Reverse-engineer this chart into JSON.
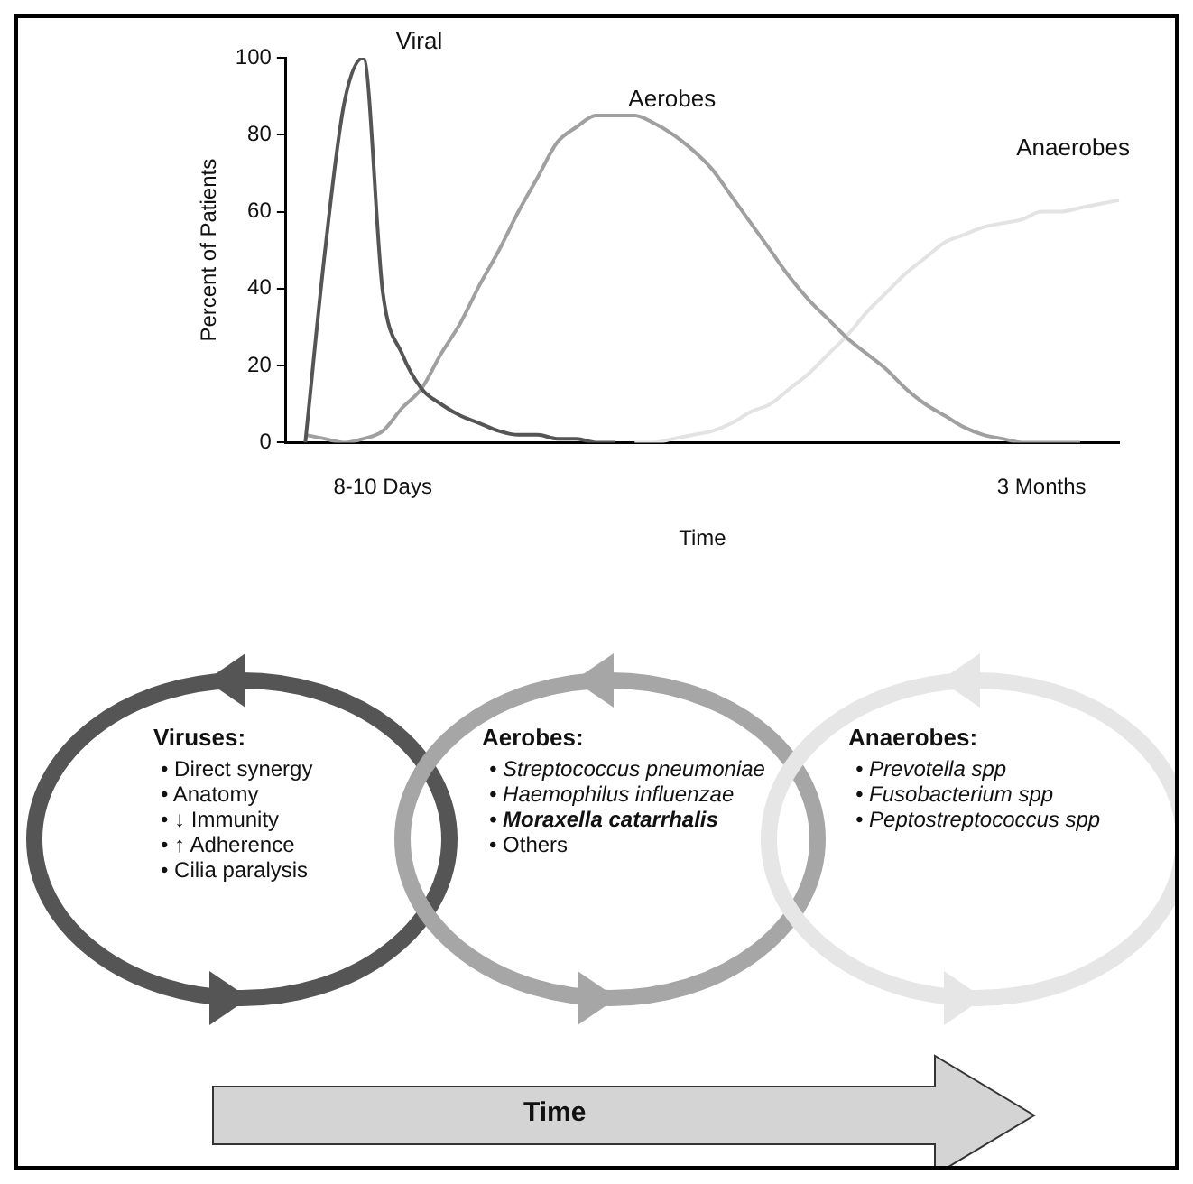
{
  "chart_data": {
    "type": "line",
    "xlabel": "Time",
    "ylabel": "Percent of Patients",
    "categories": [
      null,
      null,
      null,
      null,
      null,
      "8-10 Days",
      null,
      null,
      null,
      null,
      null,
      null,
      null,
      null,
      null,
      null,
      null,
      null,
      null,
      null,
      null,
      null,
      null,
      null,
      null,
      null,
      null,
      null,
      null,
      null,
      null,
      null,
      null,
      null,
      null,
      null,
      null,
      null,
      null,
      "3 Months",
      null,
      null,
      null,
      null
    ],
    "series": [
      {
        "name": "Viral",
        "color": "#555555",
        "values": [
          null,
          0,
          49,
          88,
          100,
          39,
          23,
          14,
          10,
          7,
          5,
          3,
          2,
          2,
          1,
          1,
          0,
          0,
          null,
          null,
          null,
          null,
          null,
          null,
          null,
          null,
          null,
          null,
          null,
          null,
          null,
          null,
          null,
          null,
          null,
          null,
          null,
          null,
          null,
          null,
          null,
          null,
          null,
          null
        ]
      },
      {
        "name": "Aerobes",
        "color": "#a0a0a0",
        "values": [
          null,
          2,
          1,
          0,
          1,
          3,
          9,
          14,
          23,
          31,
          41,
          50,
          60,
          69,
          78,
          82,
          85,
          85,
          85,
          83,
          80,
          76,
          71,
          64,
          57,
          50,
          43,
          37,
          32,
          27,
          23,
          19,
          14,
          10,
          7,
          4,
          2,
          1,
          0,
          0,
          0,
          0,
          null,
          null
        ]
      },
      {
        "name": "Anaerobes",
        "color": "#e3e3e3",
        "values": [
          null,
          null,
          null,
          null,
          null,
          null,
          null,
          null,
          null,
          null,
          null,
          null,
          null,
          null,
          null,
          null,
          null,
          null,
          0,
          0,
          1,
          2,
          3,
          5,
          8,
          10,
          14,
          18,
          23,
          28,
          34,
          39,
          44,
          48,
          52,
          54,
          56,
          57,
          58,
          60,
          60,
          61,
          62,
          63
        ]
      }
    ],
    "ylim": [
      0,
      100
    ],
    "yticks": [
      0,
      20,
      40,
      60,
      80,
      100
    ],
    "legend": false,
    "annotations": [
      "Viruses:",
      "• Direct synergy",
      "• Anatomy",
      "• ↓ Immunity",
      "• ↑ Adherence",
      "• Cilia paralysis",
      "Aerobes:",
      "• Streptococcus pneumoniae",
      "• Haemophilus influenzae",
      "• Moraxella catarrhalis",
      "• Others",
      "Anaerobes:",
      "• Prevotella spp",
      "• Fusobacterium spp",
      "• Peptostreptococcus spp",
      "Time"
    ]
  }
}
